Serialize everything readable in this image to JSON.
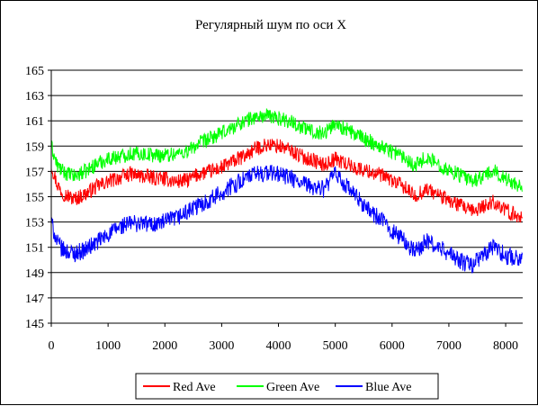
{
  "chart_data": {
    "type": "line",
    "title": "Регулярный шум по оси X",
    "xlabel": "",
    "ylabel": "",
    "xlim": [
      0,
      8300
    ],
    "ylim": [
      145,
      165
    ],
    "x_ticks": [
      0,
      1000,
      2000,
      3000,
      4000,
      5000,
      6000,
      7000,
      8000
    ],
    "y_ticks": [
      145,
      147,
      149,
      151,
      153,
      155,
      157,
      159,
      161,
      163,
      165
    ],
    "grid": "horizontal",
    "legend_position": "bottom",
    "series": [
      {
        "name": "Red Ave",
        "color": "#ff0000",
        "x": [
          0,
          100,
          200,
          400,
          600,
          800,
          1000,
          1200,
          1400,
          1600,
          1800,
          2000,
          2200,
          2400,
          2600,
          2800,
          3000,
          3200,
          3400,
          3600,
          3800,
          4000,
          4200,
          4400,
          4600,
          4800,
          5000,
          5200,
          5400,
          5600,
          5800,
          6000,
          6200,
          6400,
          6600,
          6800,
          7000,
          7200,
          7400,
          7600,
          7800,
          8000,
          8200,
          8300
        ],
        "values": [
          157.5,
          156.0,
          155.3,
          154.8,
          155.2,
          155.8,
          156.2,
          156.5,
          156.8,
          156.6,
          156.5,
          156.4,
          156.2,
          156.3,
          156.8,
          157.0,
          157.3,
          157.8,
          158.2,
          158.8,
          159.1,
          159.0,
          158.7,
          158.2,
          157.9,
          157.5,
          158.0,
          157.6,
          157.2,
          157.0,
          156.7,
          156.3,
          155.8,
          155.0,
          155.6,
          155.2,
          154.7,
          154.3,
          153.8,
          154.2,
          154.6,
          153.9,
          153.5,
          153.4
        ],
        "noise": 0.6
      },
      {
        "name": "Green Ave",
        "color": "#00ff00",
        "x": [
          0,
          100,
          200,
          400,
          600,
          800,
          1000,
          1200,
          1400,
          1600,
          1800,
          2000,
          2200,
          2400,
          2600,
          2800,
          3000,
          3200,
          3400,
          3600,
          3800,
          4000,
          4200,
          4400,
          4600,
          4800,
          5000,
          5200,
          5400,
          5600,
          5800,
          6000,
          6200,
          6400,
          6600,
          6800,
          7000,
          7200,
          7400,
          7600,
          7800,
          8000,
          8200,
          8300
        ],
        "values": [
          159.0,
          157.5,
          157.0,
          156.6,
          157.0,
          157.6,
          158.0,
          158.2,
          158.4,
          158.4,
          158.3,
          158.3,
          158.4,
          158.6,
          159.2,
          159.6,
          160.0,
          160.5,
          161.0,
          161.3,
          161.4,
          161.2,
          161.0,
          160.5,
          160.2,
          160.0,
          160.8,
          160.3,
          159.8,
          159.4,
          159.0,
          158.6,
          158.2,
          157.5,
          158.1,
          157.6,
          157.1,
          156.7,
          156.2,
          156.6,
          157.0,
          156.4,
          156.0,
          155.9
        ],
        "noise": 0.6
      },
      {
        "name": "Blue Ave",
        "color": "#0000ff",
        "x": [
          0,
          100,
          200,
          400,
          600,
          800,
          1000,
          1200,
          1400,
          1600,
          1800,
          2000,
          2200,
          2400,
          2600,
          2800,
          3000,
          3200,
          3400,
          3600,
          3800,
          4000,
          4200,
          4400,
          4600,
          4800,
          5000,
          5200,
          5400,
          5600,
          5800,
          6000,
          6200,
          6400,
          6600,
          6800,
          7000,
          7200,
          7400,
          7600,
          7800,
          8000,
          8200,
          8300
        ],
        "values": [
          153.0,
          151.4,
          150.8,
          150.5,
          150.8,
          151.4,
          152.0,
          152.6,
          152.9,
          152.9,
          152.8,
          153.0,
          153.3,
          153.8,
          154.3,
          154.8,
          155.3,
          155.9,
          156.4,
          156.8,
          156.9,
          156.8,
          156.5,
          156.0,
          155.8,
          155.6,
          156.8,
          155.8,
          154.8,
          153.9,
          153.2,
          152.3,
          151.6,
          150.6,
          151.5,
          151.0,
          150.5,
          149.9,
          149.6,
          150.3,
          151.1,
          150.3,
          150.2,
          150.1
        ],
        "noise": 0.7
      }
    ]
  }
}
